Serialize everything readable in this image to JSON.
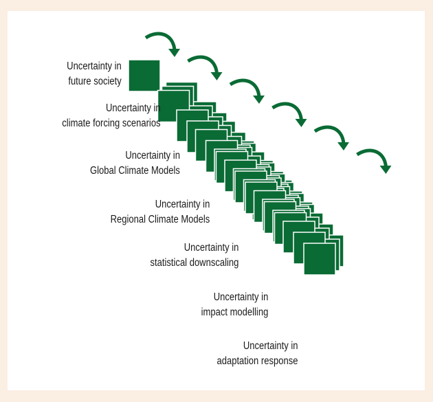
{
  "colors": {
    "page_background": "#fbeee3",
    "panel_background": "#ffffff",
    "square_fill": "#0a6b35",
    "square_stroke": "#ffffff",
    "arrow": "#0a6b35",
    "text": "#1a1a1a"
  },
  "stages": [
    {
      "line1": "Uncertainty in",
      "line2": "future society"
    },
    {
      "line1": "Uncertainty in",
      "line2": "climate forcing scenarios"
    },
    {
      "line1": "Uncertainty in",
      "line2": "Global Climate Models"
    },
    {
      "line1": "Uncertainty in",
      "line2": "Regional Climate Models"
    },
    {
      "line1": "Uncertainty in",
      "line2": "statistical downscaling"
    },
    {
      "line1": "Uncertainty in",
      "line2": "impact modelling"
    },
    {
      "line1": "Uncertainty in",
      "line2": "adaptation response"
    }
  ]
}
